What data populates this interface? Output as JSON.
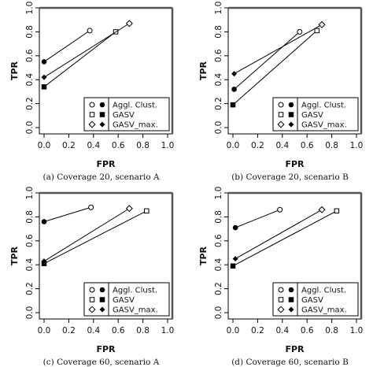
{
  "chart_data": [
    {
      "type": "line",
      "caption": "(a) Coverage 20, scenario A",
      "xlabel": "FPR",
      "ylabel": "TPR",
      "xlim": [
        0,
        1
      ],
      "ylim": [
        0,
        1
      ],
      "xticks": [
        "0.0",
        "0.2",
        "0.4",
        "0.6",
        "0.8",
        "1.0"
      ],
      "yticks": [
        "0.0",
        "0.2",
        "0.4",
        "0.6",
        "0.8",
        "1.0"
      ],
      "grid": false,
      "legend_position": "bottom-right",
      "series": [
        {
          "name": "Aggl. Clust.",
          "points": [
            {
              "x": 0.0,
              "y": 0.55,
              "marker": "filled-circle"
            },
            {
              "x": 0.37,
              "y": 0.81,
              "marker": "open-circle"
            }
          ]
        },
        {
          "name": "GASV",
          "points": [
            {
              "x": 0.0,
              "y": 0.34,
              "marker": "filled-square"
            },
            {
              "x": 0.58,
              "y": 0.8,
              "marker": "open-square"
            }
          ]
        },
        {
          "name": "GASV_max.",
          "points": [
            {
              "x": 0.0,
              "y": 0.42,
              "marker": "filled-diamond"
            },
            {
              "x": 0.69,
              "y": 0.87,
              "marker": "open-diamond"
            }
          ]
        }
      ]
    },
    {
      "type": "line",
      "caption": "(b) Coverage 20, scenario B",
      "xlabel": "FPR",
      "ylabel": "TPR",
      "xlim": [
        0,
        1
      ],
      "ylim": [
        0,
        1
      ],
      "xticks": [
        "0.0",
        "0.2",
        "0.4",
        "0.6",
        "0.8",
        "1.0"
      ],
      "yticks": [
        "0.0",
        "0.2",
        "0.4",
        "0.6",
        "0.8",
        "1.0"
      ],
      "grid": false,
      "legend_position": "bottom-right",
      "series": [
        {
          "name": "Aggl. Clust.",
          "points": [
            {
              "x": 0.01,
              "y": 0.32,
              "marker": "filled-circle"
            },
            {
              "x": 0.54,
              "y": 0.8,
              "marker": "open-circle"
            }
          ]
        },
        {
          "name": "GASV",
          "points": [
            {
              "x": 0.0,
              "y": 0.19,
              "marker": "filled-square"
            },
            {
              "x": 0.68,
              "y": 0.81,
              "marker": "open-square"
            }
          ]
        },
        {
          "name": "GASV_max.",
          "points": [
            {
              "x": 0.01,
              "y": 0.45,
              "marker": "filled-diamond"
            },
            {
              "x": 0.72,
              "y": 0.86,
              "marker": "open-diamond"
            }
          ]
        }
      ]
    },
    {
      "type": "line",
      "caption": "(c) Coverage 60, scenario A",
      "xlabel": "FPR",
      "ylabel": "TPR",
      "xlim": [
        0,
        1
      ],
      "ylim": [
        0,
        1
      ],
      "xticks": [
        "0.0",
        "0.2",
        "0.4",
        "0.6",
        "0.8",
        "1.0"
      ],
      "yticks": [
        "0.0",
        "0.2",
        "0.4",
        "0.6",
        "0.8",
        "1.0"
      ],
      "grid": false,
      "legend_position": "bottom-right",
      "series": [
        {
          "name": "Aggl. Clust.",
          "points": [
            {
              "x": 0.0,
              "y": 0.76,
              "marker": "filled-circle"
            },
            {
              "x": 0.38,
              "y": 0.88,
              "marker": "open-circle"
            }
          ]
        },
        {
          "name": "GASV",
          "points": [
            {
              "x": 0.0,
              "y": 0.41,
              "marker": "filled-square"
            },
            {
              "x": 0.83,
              "y": 0.85,
              "marker": "open-square"
            }
          ]
        },
        {
          "name": "GASV_max.",
          "points": [
            {
              "x": 0.0,
              "y": 0.43,
              "marker": "filled-diamond"
            },
            {
              "x": 0.69,
              "y": 0.87,
              "marker": "open-diamond"
            }
          ]
        }
      ]
    },
    {
      "type": "line",
      "caption": "(d) Coverage 60, scenario B",
      "xlabel": "FPR",
      "ylabel": "TPR",
      "xlim": [
        0,
        1
      ],
      "ylim": [
        0,
        1
      ],
      "xticks": [
        "0.0",
        "0.2",
        "0.4",
        "0.6",
        "0.8",
        "1.0"
      ],
      "yticks": [
        "0.0",
        "0.2",
        "0.4",
        "0.6",
        "0.8",
        "1.0"
      ],
      "grid": false,
      "legend_position": "bottom-right",
      "series": [
        {
          "name": "Aggl. Clust.",
          "points": [
            {
              "x": 0.02,
              "y": 0.71,
              "marker": "filled-circle"
            },
            {
              "x": 0.38,
              "y": 0.86,
              "marker": "open-circle"
            }
          ]
        },
        {
          "name": "GASV",
          "points": [
            {
              "x": 0.0,
              "y": 0.39,
              "marker": "filled-square"
            },
            {
              "x": 0.84,
              "y": 0.85,
              "marker": "open-square"
            }
          ]
        },
        {
          "name": "GASV_max.",
          "points": [
            {
              "x": 0.02,
              "y": 0.45,
              "marker": "filled-diamond"
            },
            {
              "x": 0.72,
              "y": 0.86,
              "marker": "open-diamond"
            }
          ]
        }
      ]
    }
  ]
}
